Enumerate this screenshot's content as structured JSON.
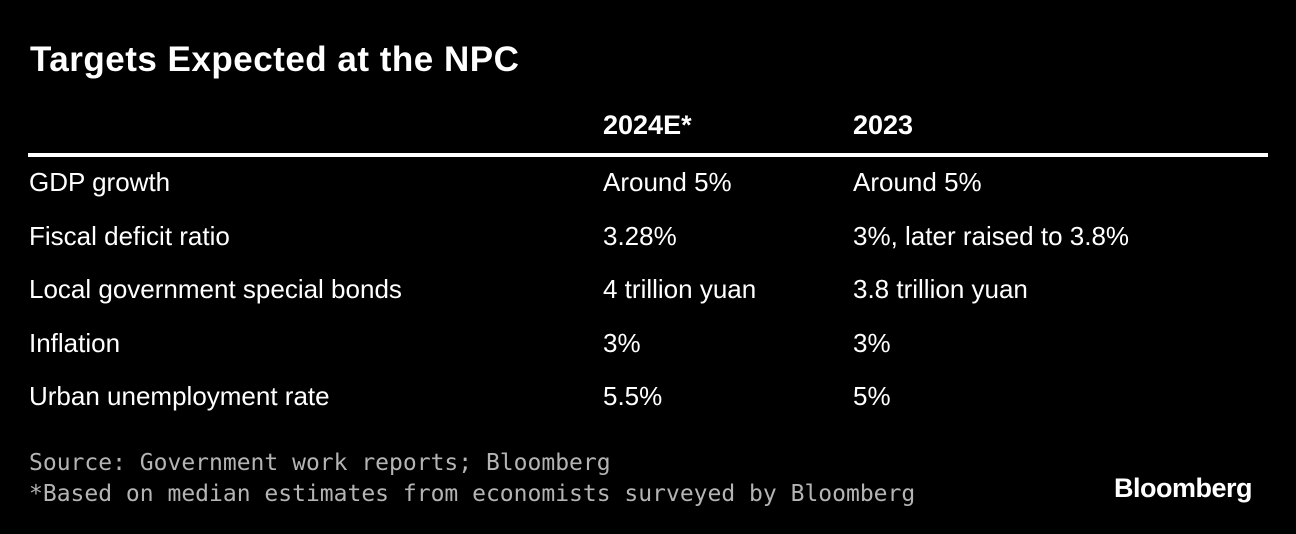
{
  "chart_data": {
    "type": "table",
    "title": "Targets Expected at the NPC",
    "columns": [
      "",
      "2024E*",
      "2023"
    ],
    "rows": [
      [
        "GDP growth",
        "Around 5%",
        "Around 5%"
      ],
      [
        "Fiscal deficit ratio",
        "3.28%",
        "3%, later raised to 3.8%"
      ],
      [
        "Local government special bonds",
        "4 trillion yuan",
        "3.8 trillion yuan"
      ],
      [
        "Inflation",
        "3%",
        "3%"
      ],
      [
        "Urban unemployment rate",
        "5.5%",
        "5%"
      ]
    ],
    "source": "Source: Government work reports; Bloomberg",
    "note": "*Based on median estimates from economists surveyed by Bloomberg"
  },
  "brand": "Bloomberg",
  "colors": {
    "background": "#000000",
    "text": "#ffffff",
    "footnote": "#b4b4b4"
  }
}
